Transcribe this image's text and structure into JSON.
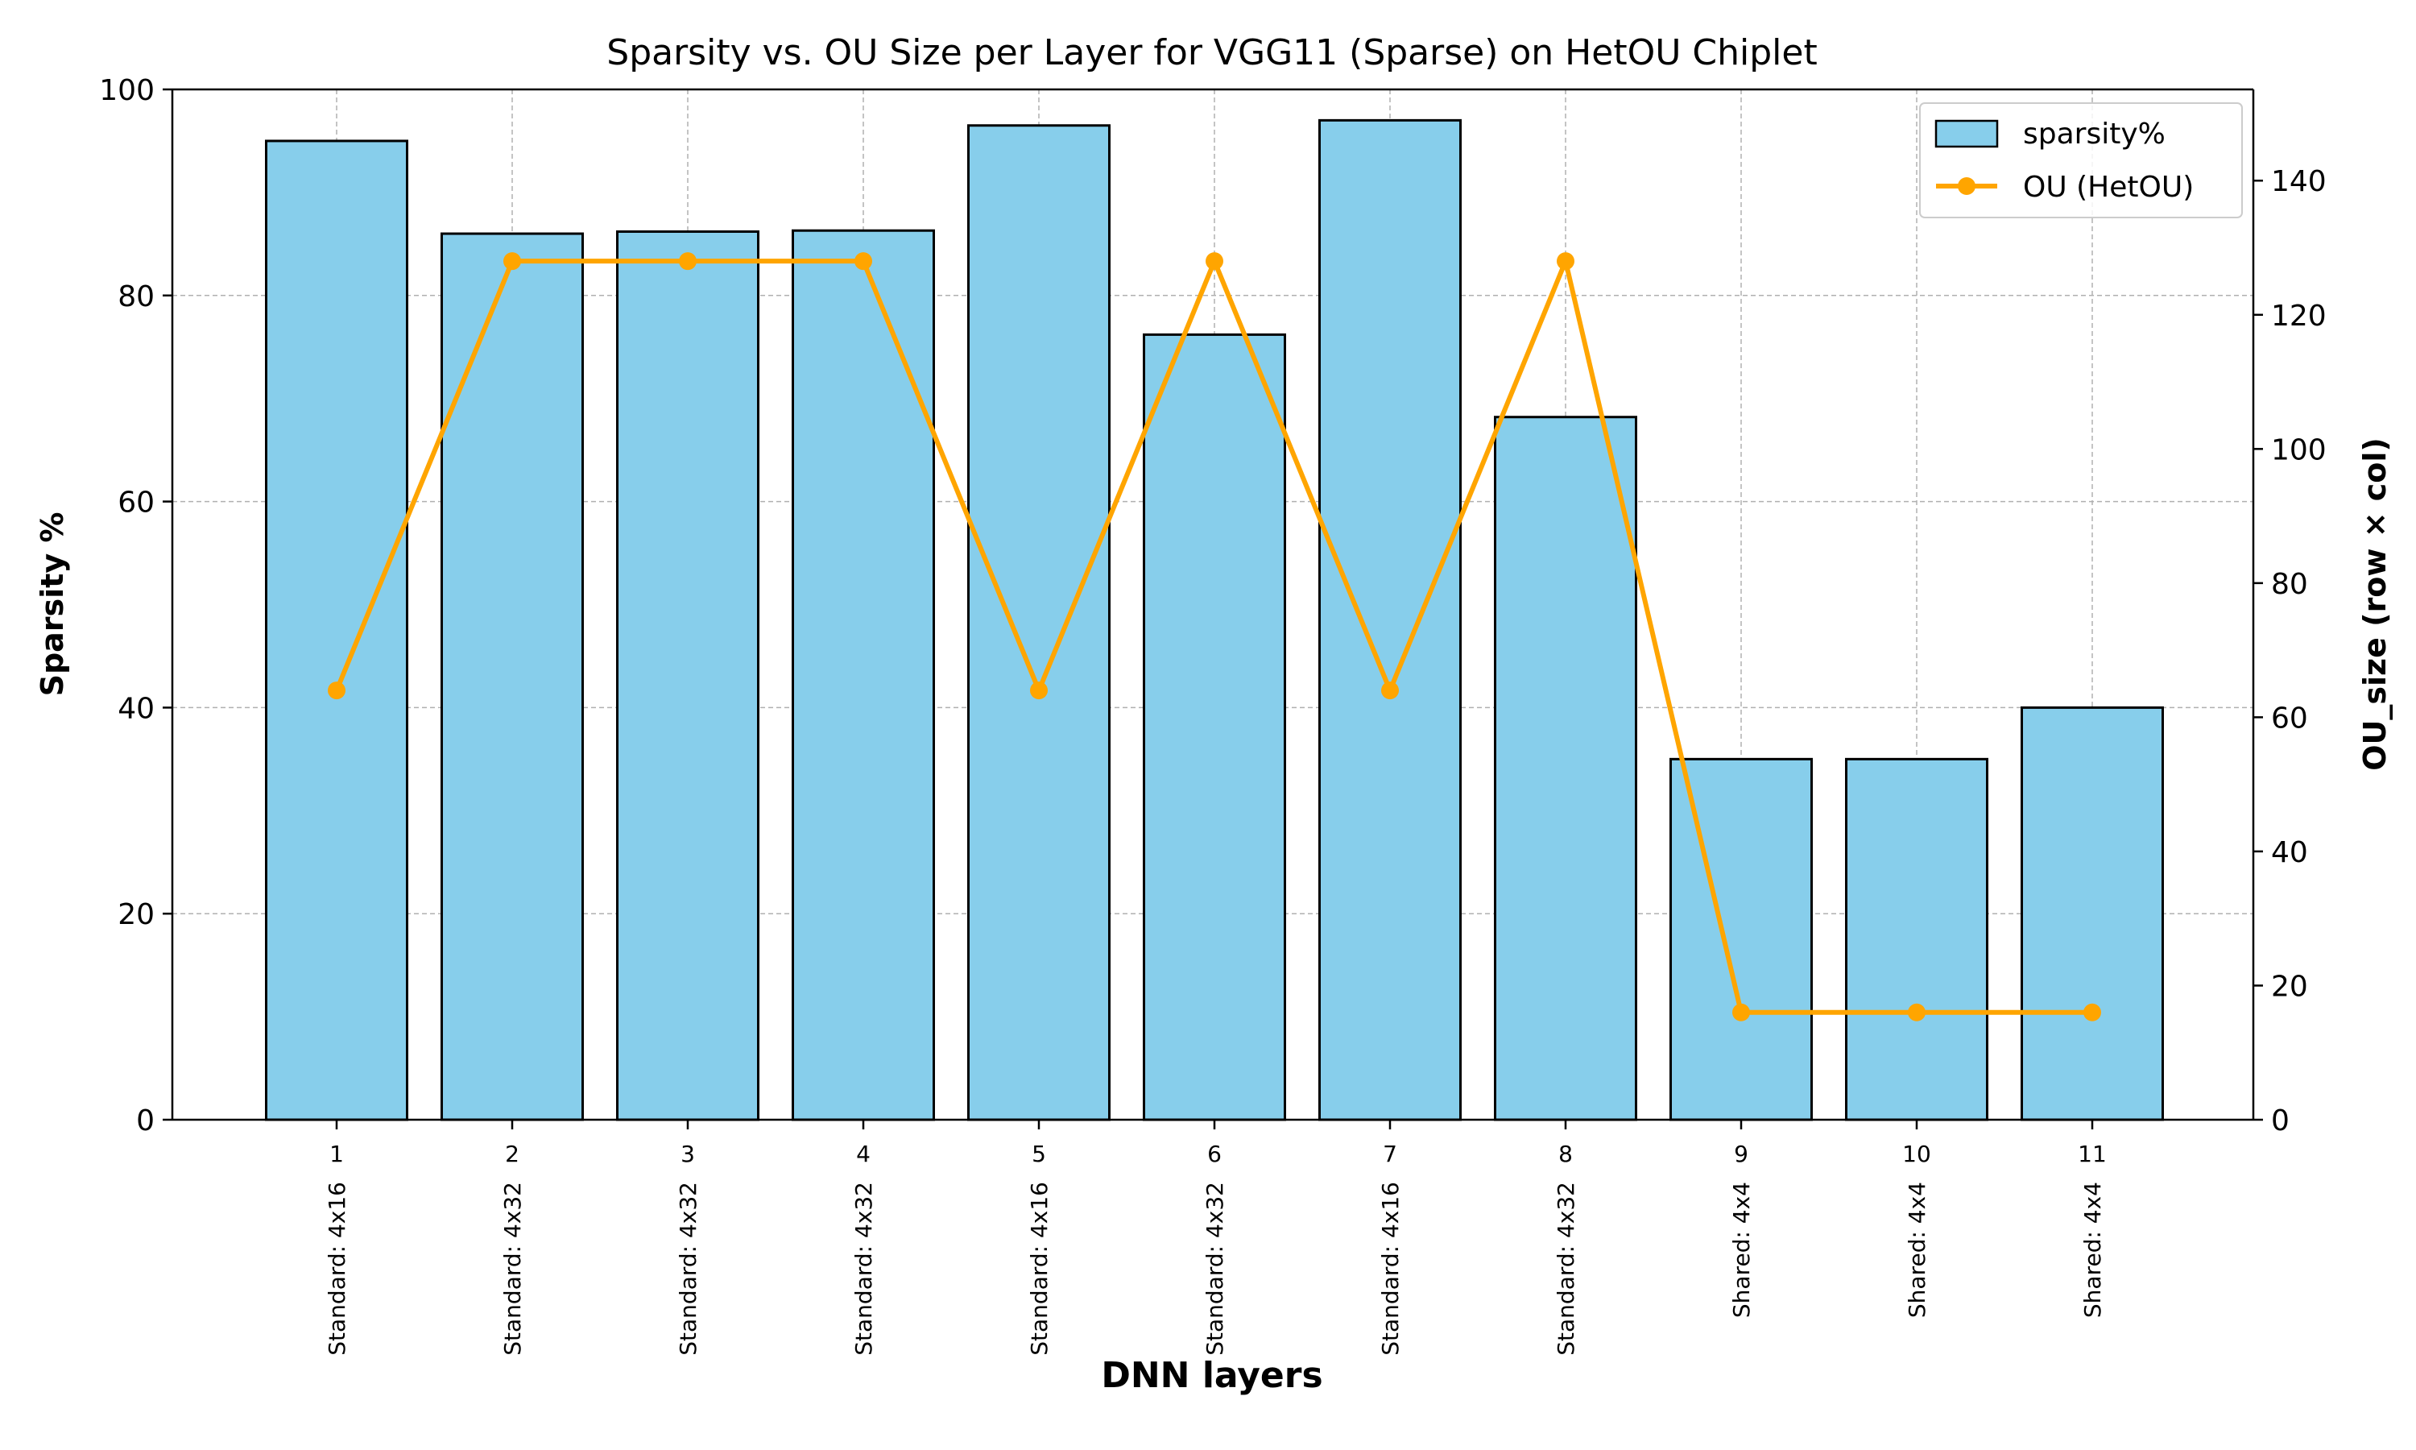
{
  "chart_data": {
    "type": "bar+line",
    "title": "Sparsity vs. OU Size per Layer for VGG11 (Sparse) on HetOU Chiplet",
    "xlabel": "DNN layers",
    "ylabel": "Sparsity %",
    "y2label": "OU_size (row × col)",
    "categories": [
      "1",
      "2",
      "3",
      "4",
      "5",
      "6",
      "7",
      "8",
      "9",
      "10",
      "11"
    ],
    "category_sublabels": [
      "Standard: 4x16",
      "Standard: 4x32",
      "Standard: 4x32",
      "Standard: 4x32",
      "Standard: 4x16",
      "Standard: 4x32",
      "Standard: 4x16",
      "Standard: 4x32",
      "Shared: 4x4",
      "Shared: 4x4",
      "Shared: 4x4"
    ],
    "series": [
      {
        "name": "sparsity%",
        "type": "bar",
        "axis": "left",
        "values": [
          95,
          86,
          86.2,
          86.3,
          96.5,
          76.2,
          97,
          68.2,
          35,
          35,
          40
        ],
        "color": "#87CEEB",
        "edge": "#000000"
      },
      {
        "name": "OU (HetOU)",
        "type": "line",
        "axis": "right",
        "values": [
          64,
          128,
          128,
          128,
          64,
          128,
          64,
          128,
          16,
          16,
          16
        ],
        "color": "#FFA500"
      }
    ],
    "ylim": [
      0,
      100
    ],
    "y2lim": [
      0,
      153.6
    ],
    "yticks": [
      0,
      20,
      40,
      60,
      80,
      100
    ],
    "y2ticks": [
      0,
      20,
      40,
      60,
      80,
      100,
      120,
      140
    ],
    "grid": true,
    "legend": "top-right"
  }
}
